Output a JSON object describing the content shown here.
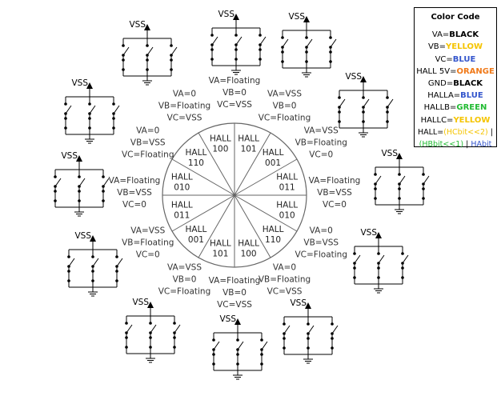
{
  "colors": {
    "black": "#000000",
    "yellow": "#f5c400",
    "blue": "#3355cc",
    "orange": "#f07a1a",
    "green": "#22bb33"
  },
  "legend": {
    "title": "Color Code",
    "rows": [
      {
        "label": "VA=",
        "value": "BLACK",
        "color": "#000000"
      },
      {
        "label": "VB=",
        "value": "YELLOW",
        "color": "#f5c400"
      },
      {
        "label": "VC=",
        "value": "BLUE",
        "color": "#3355cc"
      },
      {
        "label": "HALL 5V=",
        "value": "ORANGE",
        "color": "#f07a1a"
      },
      {
        "label": "GND=",
        "value": "BLACK",
        "color": "#000000"
      },
      {
        "label": "HALLA=",
        "value": "BLUE",
        "color": "#3355cc"
      },
      {
        "label": "HALLB=",
        "value": "GREEN",
        "color": "#22bb33"
      },
      {
        "label": "HALLC=",
        "value": "YELLOW",
        "color": "#f5c400"
      }
    ],
    "hall_prefix": "HALL=",
    "hall_c": "(HCbit<<2)",
    "hall_sep1": " |",
    "hall_b": "(HBbit<<1)",
    "hall_sep2": " | ",
    "hall_a": "HAbit"
  },
  "hall_labels": [
    "101",
    "001",
    "011",
    "010",
    "110",
    "100",
    "101",
    "001",
    "011",
    "010",
    "110",
    "100"
  ],
  "hall_word": "HALL",
  "states": [
    [
      "VA=Floating",
      "VB=0",
      "VC=VSS"
    ],
    [
      "VA=VSS",
      "VB=0",
      "VC=Floating"
    ],
    [
      "VA=VSS",
      "VB=Floating",
      "VC=0"
    ],
    [
      "VA=Floating",
      "VB=VSS",
      "VC=0"
    ],
    [
      "VA=0",
      "VB=VSS",
      "VC=Floating"
    ],
    [
      "VA=0",
      "VB=Floating",
      "VC=VSS"
    ],
    [
      "VA=Floating",
      "VB=0",
      "VC=VSS"
    ],
    [
      "VA=VSS",
      "VB=0",
      "VC=Floating"
    ],
    [
      "VA=VSS",
      "VB=Floating",
      "VC=0"
    ],
    [
      "VA=Floating",
      "VB=VSS",
      "VC=0"
    ],
    [
      "VA=0",
      "VB=VSS",
      "VC=Floating"
    ],
    [
      "VA=0",
      "VB=Floating",
      "VC=VSS"
    ]
  ],
  "circuit_label": "VSS",
  "circuits": [
    {
      "top": "open",
      "bottom": "closed"
    },
    {
      "top": "open",
      "bottom": "closed"
    },
    {
      "top": "open",
      "bottom": "closed"
    },
    {
      "top": "open",
      "bottom": "closed"
    },
    {
      "top": "open",
      "bottom": "closed"
    },
    {
      "top": "open",
      "bottom": "closed"
    },
    {
      "top": "open",
      "bottom": "closed"
    },
    {
      "top": "open",
      "bottom": "closed"
    },
    {
      "top": "open",
      "bottom": "closed"
    },
    {
      "top": "open",
      "bottom": "closed"
    },
    {
      "top": "open",
      "bottom": "closed"
    },
    {
      "top": "open",
      "bottom": "closed"
    }
  ]
}
